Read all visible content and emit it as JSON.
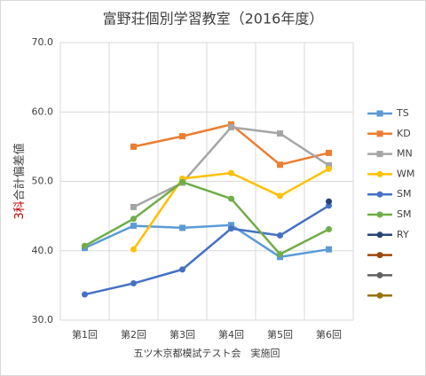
{
  "chart_data": {
    "type": "line",
    "title": "富野荘個別学習教室（2016年度）",
    "y_label": [
      "3科",
      "合計偏差値"
    ],
    "y_label_colors": [
      "#c00000",
      "#404040"
    ],
    "x_label": "五ツ木京都模試テスト会　実施回",
    "categories": [
      "第1回",
      "第2回",
      "第3回",
      "第4回",
      "第5回",
      "第6回"
    ],
    "ylim": [
      30,
      70
    ],
    "yticks": [
      {
        "value": 30,
        "label": "30.0"
      },
      {
        "value": 40,
        "label": "40.0"
      },
      {
        "value": 50,
        "label": "50.0"
      },
      {
        "value": 60,
        "label": "60.0"
      },
      {
        "value": 70,
        "label": "70.0"
      }
    ],
    "grid": true,
    "legend": "right",
    "series": [
      {
        "name": "TS",
        "color": "#5b9bd5",
        "marker": "square",
        "values": [
          40.4,
          43.6,
          43.3,
          43.7,
          39.1,
          40.2
        ]
      },
      {
        "name": "KD",
        "color": "#ed7d31",
        "marker": "square",
        "values": [
          null,
          55.0,
          56.5,
          58.2,
          52.4,
          54.1
        ]
      },
      {
        "name": "MN",
        "color": "#a5a5a5",
        "marker": "square",
        "values": [
          null,
          46.3,
          49.8,
          57.8,
          56.9,
          52.3
        ]
      },
      {
        "name": "WM",
        "color": "#ffc000",
        "marker": "circle",
        "values": [
          null,
          40.2,
          50.4,
          51.2,
          47.9,
          51.8
        ]
      },
      {
        "name": "SM",
        "color": "#4472c4",
        "marker": "circle",
        "values": [
          33.7,
          35.3,
          37.3,
          43.2,
          42.2,
          46.5
        ]
      },
      {
        "name": "SM",
        "color": "#70ad47",
        "marker": "circle",
        "values": [
          40.7,
          44.6,
          49.9,
          47.5,
          39.5,
          43.1
        ]
      },
      {
        "name": "RY",
        "color": "#264478",
        "marker": "circle",
        "values": [
          null,
          null,
          null,
          null,
          null,
          47.1
        ]
      },
      {
        "name": null,
        "color": "#9e480e",
        "marker": "circle",
        "values": [
          null,
          null,
          null,
          null,
          null,
          null
        ]
      },
      {
        "name": null,
        "color": "#636363",
        "marker": "circle",
        "values": [
          null,
          null,
          null,
          null,
          null,
          null
        ]
      },
      {
        "name": null,
        "color": "#997300",
        "marker": "circle",
        "values": [
          null,
          null,
          null,
          null,
          null,
          null
        ]
      }
    ]
  }
}
